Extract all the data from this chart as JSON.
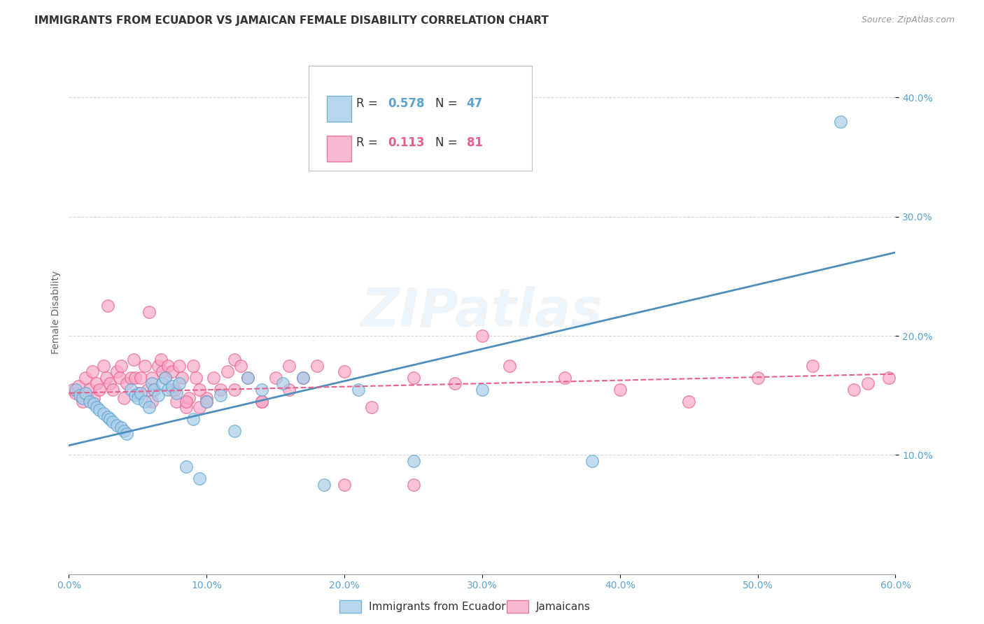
{
  "title": "IMMIGRANTS FROM ECUADOR VS JAMAICAN FEMALE DISABILITY CORRELATION CHART",
  "source": "Source: ZipAtlas.com",
  "ylabel": "Female Disability",
  "watermark": "ZIPatlas",
  "xlim": [
    0.0,
    0.6
  ],
  "ylim": [
    0.0,
    0.44
  ],
  "xticks": [
    0.0,
    0.1,
    0.2,
    0.3,
    0.4,
    0.5,
    0.6
  ],
  "yticks": [
    0.1,
    0.2,
    0.3,
    0.4
  ],
  "color_blue": "#a8cde8",
  "color_blue_edge": "#5ba3d0",
  "color_pink": "#f9a8c8",
  "color_pink_edge": "#e8608a",
  "color_line_blue": "#4e8fbe",
  "color_line_pink": "#e8608a",
  "color_text_blue": "#5ba3d0",
  "color_text_pink": "#e8608a",
  "color_grid": "#cccccc",
  "ecuador_x": [
    0.005,
    0.008,
    0.01,
    0.012,
    0.015,
    0.018,
    0.02,
    0.022,
    0.025,
    0.028,
    0.03,
    0.032,
    0.035,
    0.038,
    0.04,
    0.042,
    0.045,
    0.048,
    0.05,
    0.052,
    0.055,
    0.058,
    0.06,
    0.062,
    0.065,
    0.068,
    0.07,
    0.072,
    0.075,
    0.078,
    0.08,
    0.085,
    0.09,
    0.095,
    0.1,
    0.11,
    0.12,
    0.13,
    0.14,
    0.155,
    0.17,
    0.185,
    0.21,
    0.25,
    0.3,
    0.38,
    0.56
  ],
  "ecuador_y": [
    0.155,
    0.15,
    0.148,
    0.152,
    0.145,
    0.143,
    0.14,
    0.138,
    0.135,
    0.132,
    0.13,
    0.128,
    0.125,
    0.123,
    0.12,
    0.118,
    0.155,
    0.15,
    0.148,
    0.152,
    0.145,
    0.14,
    0.16,
    0.155,
    0.15,
    0.16,
    0.165,
    0.155,
    0.158,
    0.152,
    0.16,
    0.09,
    0.13,
    0.08,
    0.145,
    0.15,
    0.12,
    0.165,
    0.155,
    0.16,
    0.165,
    0.075,
    0.155,
    0.095,
    0.155,
    0.095,
    0.38
  ],
  "jamaica_x": [
    0.003,
    0.005,
    0.007,
    0.01,
    0.012,
    0.015,
    0.017,
    0.018,
    0.02,
    0.022,
    0.025,
    0.027,
    0.028,
    0.03,
    0.032,
    0.035,
    0.037,
    0.038,
    0.04,
    0.042,
    0.045,
    0.047,
    0.048,
    0.05,
    0.052,
    0.055,
    0.057,
    0.058,
    0.06,
    0.062,
    0.065,
    0.067,
    0.068,
    0.07,
    0.072,
    0.075,
    0.077,
    0.078,
    0.08,
    0.082,
    0.085,
    0.087,
    0.09,
    0.092,
    0.095,
    0.1,
    0.105,
    0.11,
    0.115,
    0.12,
    0.125,
    0.13,
    0.14,
    0.15,
    0.16,
    0.17,
    0.18,
    0.2,
    0.22,
    0.25,
    0.28,
    0.32,
    0.36,
    0.4,
    0.45,
    0.5,
    0.54,
    0.57,
    0.58,
    0.595,
    0.06,
    0.075,
    0.085,
    0.095,
    0.1,
    0.12,
    0.14,
    0.16,
    0.2,
    0.25,
    0.3
  ],
  "jamaica_y": [
    0.155,
    0.152,
    0.158,
    0.145,
    0.165,
    0.155,
    0.17,
    0.148,
    0.16,
    0.155,
    0.175,
    0.165,
    0.225,
    0.16,
    0.155,
    0.17,
    0.165,
    0.175,
    0.148,
    0.16,
    0.165,
    0.18,
    0.165,
    0.152,
    0.165,
    0.175,
    0.155,
    0.22,
    0.165,
    0.155,
    0.175,
    0.18,
    0.17,
    0.165,
    0.175,
    0.17,
    0.155,
    0.145,
    0.175,
    0.165,
    0.14,
    0.148,
    0.175,
    0.165,
    0.14,
    0.148,
    0.165,
    0.155,
    0.17,
    0.18,
    0.175,
    0.165,
    0.145,
    0.165,
    0.175,
    0.165,
    0.175,
    0.17,
    0.14,
    0.165,
    0.16,
    0.175,
    0.165,
    0.155,
    0.145,
    0.165,
    0.175,
    0.155,
    0.16,
    0.165,
    0.145,
    0.155,
    0.145,
    0.155,
    0.145,
    0.155,
    0.145,
    0.155,
    0.075,
    0.075,
    0.2
  ],
  "ecuador_line_x": [
    0.0,
    0.6
  ],
  "ecuador_line_y": [
    0.108,
    0.27
  ],
  "jamaica_line_x": [
    0.0,
    0.6
  ],
  "jamaica_line_y": [
    0.152,
    0.168
  ],
  "background_color": "#ffffff"
}
